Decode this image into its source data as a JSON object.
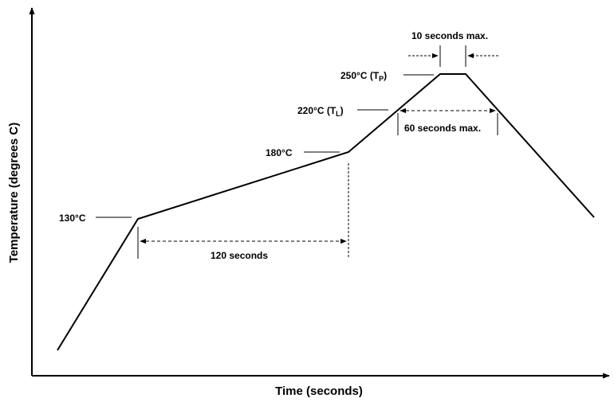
{
  "diagram": {
    "x_axis_label": "Time (seconds)",
    "y_axis_label": "Temperature (degrees C)",
    "temp_130": "130°C",
    "temp_180": "180°C",
    "temp_220": "220°C (T",
    "temp_220_sub": "L",
    "temp_220_close": ")",
    "temp_250": "250°C (T",
    "temp_250_sub": "P",
    "temp_250_close": ")",
    "span_120": "120 seconds",
    "span_60": "60 seconds max.",
    "span_10": "10 seconds max."
  },
  "colors": {
    "line": "#000000",
    "background": "#ffffff"
  }
}
